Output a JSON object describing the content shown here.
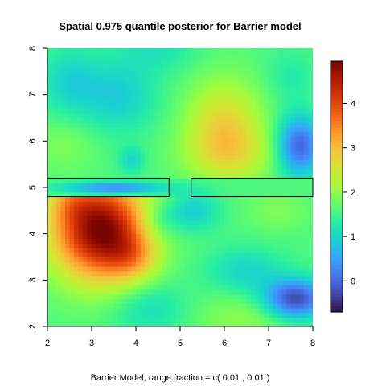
{
  "chart_data": {
    "type": "heatmap",
    "title": "Spatial 0.975 quantile posterior for Barrier model",
    "subtitle": "Barrier Model, range.fraction = c( 0.01 ,  0.01 )",
    "xlim": [
      2,
      8
    ],
    "ylim": [
      2,
      8
    ],
    "x_ticks": [
      "2",
      "3",
      "4",
      "5",
      "6",
      "7",
      "8"
    ],
    "y_ticks": [
      "2",
      "3",
      "4",
      "5",
      "6",
      "7",
      "8"
    ],
    "colorbar": {
      "range": [
        -0.7,
        4.95
      ],
      "ticks": [
        "0",
        "1",
        "2",
        "3",
        "4"
      ],
      "palette": [
        "#30123b",
        "#4145ab",
        "#4675ed",
        "#39a2fc",
        "#1bcfd4",
        "#24eca6",
        "#61fc6c",
        "#a4fc3b",
        "#d1e834",
        "#f3c63a",
        "#fe9b2d",
        "#f36315",
        "#d93806",
        "#b11901",
        "#7a0402"
      ]
    },
    "barriers": [
      {
        "x": [
          2,
          4.75
        ],
        "y": [
          4.8,
          5.2
        ]
      },
      {
        "x": [
          5.25,
          8
        ],
        "y": [
          4.8,
          5.2
        ]
      }
    ],
    "field": {
      "base": 1.6,
      "components": [
        {
          "x": 3.2,
          "y": 4.1,
          "sx": 0.75,
          "sy": 0.75,
          "amp": 3.4,
          "clip": "below"
        },
        {
          "x": 3.9,
          "y": 3.5,
          "sx": 0.4,
          "sy": 0.35,
          "amp": 0.8,
          "clip": "below"
        },
        {
          "x": 2.5,
          "y": 4.7,
          "sx": 0.35,
          "sy": 0.3,
          "amp": 0.5,
          "clip": "below"
        },
        {
          "x": 4.5,
          "y": 4.3,
          "sx": 0.35,
          "sy": 0.3,
          "amp": -0.5,
          "clip": "below"
        },
        {
          "x": 3.5,
          "y": 5.0,
          "sx": 0.8,
          "sy": 0.09,
          "amp": -1.3,
          "clip": "inside"
        },
        {
          "x": 6.0,
          "y": 6.3,
          "sx": 0.6,
          "sy": 0.7,
          "amp": 1.2,
          "clip": "above"
        },
        {
          "x": 6.2,
          "y": 5.7,
          "sx": 0.8,
          "sy": 0.4,
          "amp": 0.5,
          "clip": "above"
        },
        {
          "x": 7.7,
          "y": 5.9,
          "sx": 0.35,
          "sy": 0.45,
          "amp": -1.7,
          "clip": "above"
        },
        {
          "x": 7.6,
          "y": 2.6,
          "sx": 0.5,
          "sy": 0.3,
          "amp": -1.9,
          "clip": "none"
        },
        {
          "x": 6.5,
          "y": 3.2,
          "sx": 0.6,
          "sy": 0.35,
          "amp": -0.6,
          "clip": "none"
        },
        {
          "x": 5.3,
          "y": 4.5,
          "sx": 0.4,
          "sy": 0.3,
          "amp": -0.7,
          "clip": "none"
        },
        {
          "x": 2.5,
          "y": 7.3,
          "sx": 0.45,
          "sy": 0.5,
          "amp": -0.6,
          "clip": "above"
        },
        {
          "x": 3.6,
          "y": 7.0,
          "sx": 0.6,
          "sy": 0.55,
          "amp": -0.7,
          "clip": "above"
        },
        {
          "x": 4.5,
          "y": 8.0,
          "sx": 0.6,
          "sy": 0.35,
          "amp": -0.4,
          "clip": "above"
        },
        {
          "x": 3.9,
          "y": 5.6,
          "sx": 0.2,
          "sy": 0.2,
          "amp": -0.6,
          "clip": "above"
        },
        {
          "x": 7.5,
          "y": 7.4,
          "sx": 0.4,
          "sy": 0.4,
          "amp": -0.3,
          "clip": "above"
        },
        {
          "x": 6.5,
          "y": 2.2,
          "sx": 0.8,
          "sy": 0.4,
          "amp": 0.4,
          "clip": "none"
        },
        {
          "x": 4.3,
          "y": 2.4,
          "sx": 0.6,
          "sy": 0.4,
          "amp": -0.5,
          "clip": "none"
        },
        {
          "x": 7.2,
          "y": 4.5,
          "sx": 0.5,
          "sy": 0.3,
          "amp": 0.3,
          "clip": "below"
        },
        {
          "x": 2.4,
          "y": 5.9,
          "sx": 0.5,
          "sy": 0.4,
          "amp": 0.3,
          "clip": "above"
        }
      ]
    }
  }
}
